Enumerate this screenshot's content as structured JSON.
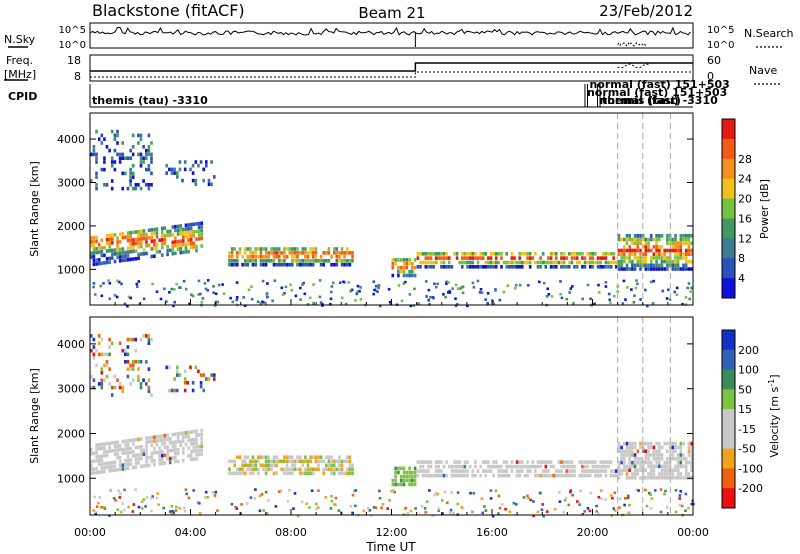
{
  "header": {
    "station": "Blackstone (fitACF)",
    "beam": "Beam 21",
    "date": "23/Feb/2012"
  },
  "strip": {
    "nsky_label": "N.Sky",
    "nsearch_label": "N.Search",
    "freq_label_top": "Freq.",
    "freq_label_unit": "[MHz]",
    "nave_label": "Nave",
    "cpid_label": "CPID",
    "noise_ticks": [
      "10^5",
      "10^0"
    ],
    "freq_ticks": [
      "18",
      "8"
    ],
    "nave_ticks": [
      "60",
      "0"
    ],
    "cpid_entries": [
      {
        "text": "themis (tau) -3310",
        "start_hour": 0.0
      },
      {
        "text": "normal (fast) 151+503",
        "start_hour": 19.7
      },
      {
        "text": "normal (fast) 151+503",
        "start_hour": 19.8
      },
      {
        "text": "normal (fast)",
        "start_hour": 20.2
      },
      {
        "text": "themis (tau) -3310",
        "start_hour": 20.3
      }
    ]
  },
  "colors": {
    "power_scale": [
      "#1010d8",
      "#2a52b8",
      "#3f7a93",
      "#3e9a5e",
      "#74c23f",
      "#f2c21b",
      "#f4901c",
      "#f35a16",
      "#e31a12"
    ],
    "velocity_scale": [
      "#1530c8",
      "#3060b8",
      "#3a8c5a",
      "#7dc242",
      "#c8c8c8",
      "#c8c8c8",
      "#f2a21b",
      "#f06010",
      "#e81010"
    ]
  },
  "chart_data": [
    {
      "type": "heatmap",
      "title": "Power",
      "xlabel": "",
      "ylabel": "Slant Range [km]",
      "xlim": [
        0,
        24
      ],
      "ylim": [
        180,
        4600
      ],
      "x_ticks": [
        "00:00",
        "04:00",
        "08:00",
        "12:00",
        "16:00",
        "20:00",
        "00:00"
      ],
      "y_ticks": [
        1000,
        2000,
        3000,
        4000
      ],
      "colorbar": {
        "label": "Power [dB]",
        "ticks": [
          4,
          8,
          12,
          16,
          20,
          24,
          28
        ]
      },
      "bands": [
        {
          "t0": 0.0,
          "t1": 4.5,
          "r0": 1350,
          "r1": 2050,
          "level": "high"
        },
        {
          "t0": 5.5,
          "t1": 10.5,
          "r0": 1150,
          "r1": 1600,
          "level": "high"
        },
        {
          "t0": 12.0,
          "t1": 13.0,
          "r0": 900,
          "r1": 1350,
          "level": "high"
        },
        {
          "t0": 13.0,
          "t1": 21.0,
          "r0": 1100,
          "r1": 1500,
          "level": "high"
        },
        {
          "t0": 21.0,
          "t1": 24.0,
          "r0": 1050,
          "r1": 1900,
          "level": "high"
        },
        {
          "t0": 0.0,
          "t1": 2.5,
          "r0": 2900,
          "r1": 4300,
          "level": "low"
        },
        {
          "t0": 3.0,
          "t1": 5.0,
          "r0": 3000,
          "r1": 3600,
          "level": "low"
        }
      ]
    },
    {
      "type": "heatmap",
      "title": "Velocity",
      "xlabel": "Time UT",
      "ylabel": "Slant Range [km]",
      "xlim": [
        0,
        24
      ],
      "ylim": [
        180,
        4600
      ],
      "x_ticks": [
        "00:00",
        "04:00",
        "08:00",
        "12:00",
        "16:00",
        "20:00",
        "00:00"
      ],
      "y_ticks": [
        1000,
        2000,
        3000,
        4000
      ],
      "colorbar": {
        "label": "Velocity [m s^-1]",
        "ticks": [
          200,
          100,
          50,
          15,
          -15,
          -50,
          -100,
          -200
        ]
      },
      "bands": [
        {
          "t0": 0.0,
          "t1": 4.5,
          "r0": 1350,
          "r1": 2050,
          "level": "ground"
        },
        {
          "t0": 5.5,
          "t1": 10.5,
          "r0": 1150,
          "r1": 1600,
          "level": "mixed"
        },
        {
          "t0": 12.0,
          "t1": 13.0,
          "r0": 900,
          "r1": 1350,
          "level": "green"
        },
        {
          "t0": 13.0,
          "t1": 21.0,
          "r0": 1100,
          "r1": 1500,
          "level": "ground"
        },
        {
          "t0": 21.0,
          "t1": 24.0,
          "r0": 1050,
          "r1": 1900,
          "level": "ground"
        },
        {
          "t0": 0.0,
          "t1": 2.5,
          "r0": 2900,
          "r1": 4300,
          "level": "iono"
        },
        {
          "t0": 3.0,
          "t1": 5.0,
          "r0": 3000,
          "r1": 3600,
          "level": "iono"
        }
      ]
    }
  ]
}
